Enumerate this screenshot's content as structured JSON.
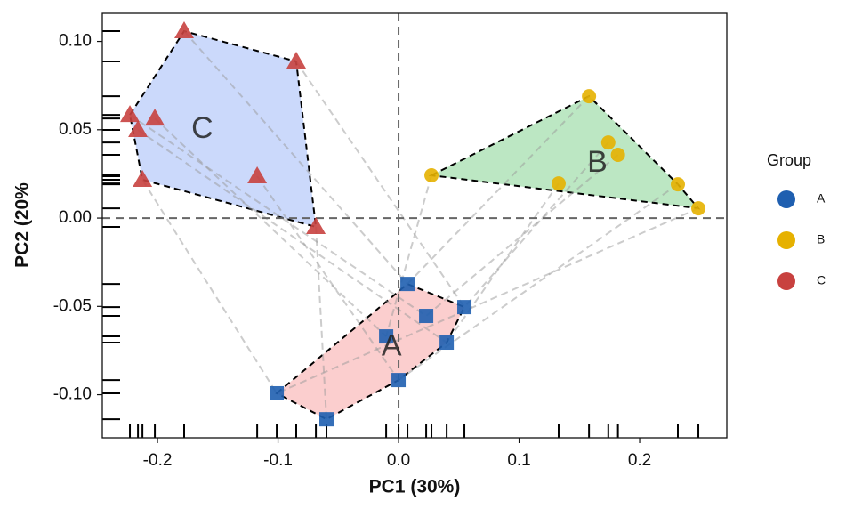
{
  "chart_data": {
    "type": "scatter",
    "x_label": "PC1 (30%)",
    "y_label": "PC2 (20%",
    "legend_title": "Group",
    "legend_position": "right",
    "xlim": [
      -0.2458,
      0.2723
    ],
    "ylim": [
      -0.1244,
      0.1159
    ],
    "xticks": [
      -0.2,
      -0.1,
      {
        "value": 0,
        "label": "0.0"
      },
      0.1,
      0.2
    ],
    "yticks": [
      {
        "value": 0.1,
        "label": "0.10"
      },
      0.05,
      {
        "value": 0,
        "label": "0.00"
      },
      -0.05,
      {
        "value": -0.1,
        "label": "-0.10"
      }
    ],
    "series": [
      {
        "name": "A",
        "color": "#1f5fb0",
        "hull_color": "#f9b9b9",
        "marker": "square",
        "x": [
          0.0074,
          0.0546,
          0.0229,
          -0.0103,
          0.0399,
          0.0,
          -0.1011,
          -0.0598
        ],
        "y": [
          -0.0373,
          -0.0504,
          -0.0554,
          -0.067,
          -0.0705,
          -0.0917,
          -0.0992,
          -0.1139
        ]
      },
      {
        "name": "B",
        "color": "#e6b100",
        "hull_color": "#9fdda9",
        "marker": "circle",
        "x": [
          0.158,
          0.174,
          0.182,
          0.0273,
          0.1328,
          0.2317,
          0.2487
        ],
        "y": [
          0.069,
          0.0428,
          0.0358,
          0.0242,
          0.0196,
          0.0191,
          0.0055
        ]
      },
      {
        "name": "C",
        "color": "#c8413f",
        "hull_color": "#b5c9fa",
        "marker": "triangle",
        "x": [
          -0.1779,
          -0.0849,
          -0.2229,
          -0.2022,
          -0.2162,
          -0.1173,
          -0.2125,
          -0.0686
        ],
        "y": [
          0.1058,
          0.0887,
          0.0584,
          0.0564,
          0.0499,
          0.0237,
          0.0217,
          -0.005
        ]
      }
    ]
  }
}
